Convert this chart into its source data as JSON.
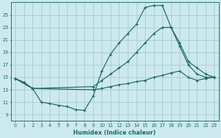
{
  "xlabel": "Humidex (Indice chaleur)",
  "ylabel": "",
  "bg_color": "#cce9ee",
  "grid_color": "#aacdd4",
  "line_color": "#1a6b6b",
  "x_ticks": [
    0,
    1,
    2,
    3,
    4,
    5,
    6,
    7,
    8,
    9,
    10,
    11,
    12,
    13,
    14,
    15,
    16,
    17,
    18,
    19,
    20,
    21,
    22,
    23
  ],
  "y_ticks": [
    9,
    11,
    13,
    15,
    17,
    19,
    21,
    23,
    25
  ],
  "ylim": [
    8.0,
    27.0
  ],
  "xlim": [
    -0.5,
    23.5
  ],
  "line1_x": [
    0,
    1,
    2,
    3,
    4,
    5,
    6,
    7,
    8,
    9,
    10,
    11,
    12,
    13,
    14,
    15,
    16,
    17,
    18,
    19,
    20,
    21,
    22,
    23
  ],
  "line1_y": [
    14.8,
    14.2,
    13.2,
    11.0,
    10.8,
    10.5,
    10.3,
    9.8,
    9.7,
    12.0,
    16.0,
    18.7,
    20.5,
    22.0,
    23.5,
    26.2,
    26.5,
    26.5,
    23.0,
    20.0,
    17.0,
    15.5,
    15.0,
    15.0
  ],
  "line2_x": [
    0,
    2,
    9,
    10,
    11,
    12,
    13,
    14,
    15,
    16,
    17,
    18,
    19,
    20,
    21,
    22,
    23
  ],
  "line2_y": [
    14.8,
    13.2,
    13.5,
    14.5,
    15.5,
    16.5,
    17.5,
    19.0,
    20.5,
    22.0,
    23.0,
    23.0,
    20.5,
    17.5,
    16.5,
    15.5,
    15.0
  ],
  "line3_x": [
    0,
    2,
    9,
    10,
    11,
    12,
    13,
    14,
    15,
    16,
    17,
    18,
    19,
    20,
    21,
    22,
    23
  ],
  "line3_y": [
    14.8,
    13.2,
    13.0,
    13.2,
    13.5,
    13.8,
    14.0,
    14.3,
    14.5,
    15.0,
    15.3,
    15.7,
    16.0,
    15.0,
    14.5,
    14.8,
    15.0
  ]
}
